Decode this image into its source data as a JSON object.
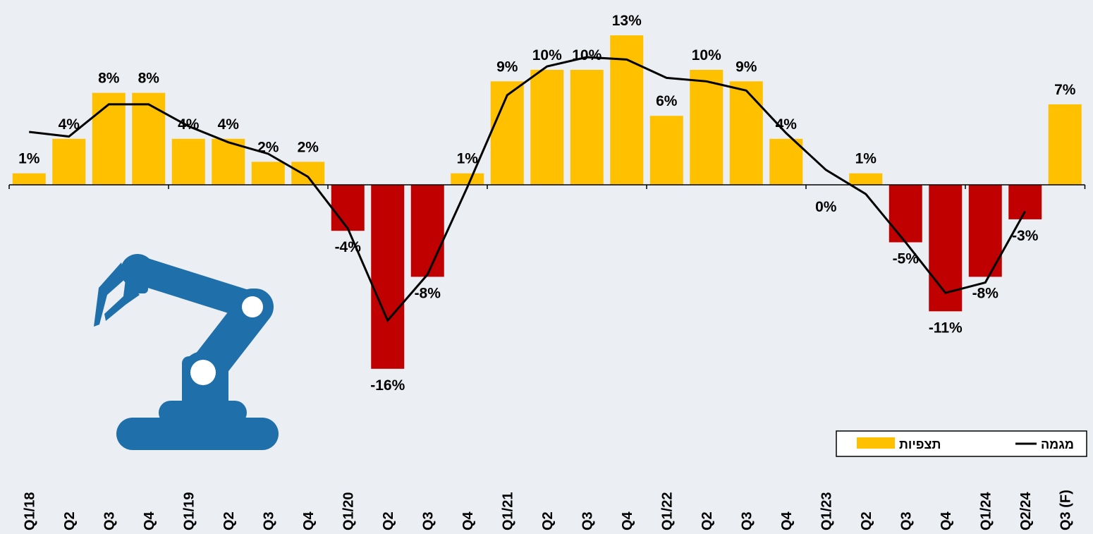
{
  "chart_data": {
    "type": "bar",
    "title": "",
    "xlabel": "",
    "ylabel": "",
    "ylim": [
      -19,
      17
    ],
    "grid": false,
    "legend_position": "bottom-right",
    "categories": [
      "Q1/18",
      "Q2",
      "Q3",
      "Q4",
      "Q1/19",
      "Q2",
      "Q3",
      "Q4",
      "Q1/20",
      "Q2",
      "Q3",
      "Q4",
      "Q1/21",
      "Q2",
      "Q3",
      "Q4",
      "Q1/22",
      "Q2",
      "Q3",
      "Q4",
      "Q1/23",
      "Q2",
      "Q3",
      "Q4",
      "Q1/24",
      "Q2/24",
      "Q3 (F)"
    ],
    "series": [
      {
        "name": "תצפיות",
        "kind": "bar",
        "values": [
          1,
          4,
          8,
          8,
          4,
          4,
          2,
          2,
          -4,
          -16,
          -8,
          1,
          9,
          10,
          10,
          13,
          6,
          10,
          9,
          4,
          0,
          1,
          -5,
          -11,
          -8,
          -3,
          7
        ],
        "labels": [
          "1%",
          "4%",
          "8%",
          "8%",
          "4%",
          "4%",
          "2%",
          "2%",
          "-4%",
          "-16%",
          "-8%",
          "1%",
          "9%",
          "10%",
          "10%",
          "13%",
          "6%",
          "10%",
          "9%",
          "4%",
          "0%",
          "1%",
          "-5%",
          "-11%",
          "-8%",
          "-3%",
          "7%"
        ],
        "color_positive": "#FFC000",
        "color_negative": "#C00000"
      },
      {
        "name": "מגמה",
        "kind": "line",
        "values": [
          4.6,
          4.2,
          7,
          7,
          5.1,
          3.7,
          2.7,
          0.7,
          -3.8,
          -11.8,
          -7.8,
          -0.2,
          7.8,
          10.3,
          11.1,
          10.9,
          9.3,
          9.0,
          8.2,
          4.5,
          1.3,
          -0.8,
          -5.0,
          -9.4,
          -8.5,
          -2.3,
          null
        ],
        "color": "#000000"
      }
    ]
  },
  "illustration": {
    "icon": "robot-arm-icon",
    "color": "#1F70AA"
  }
}
